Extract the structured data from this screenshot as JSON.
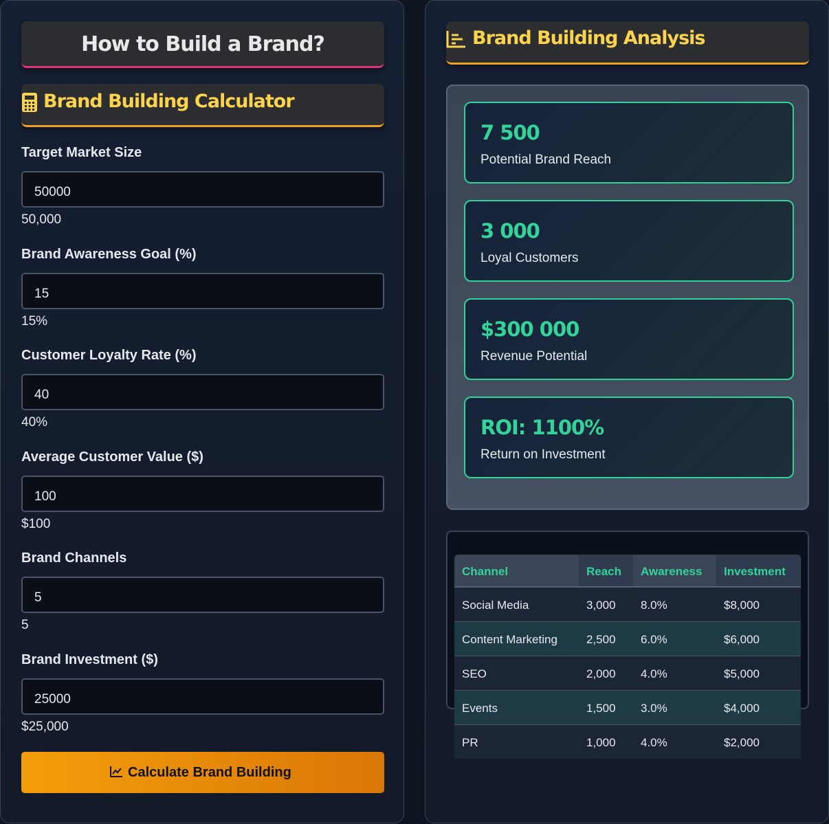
{
  "left": {
    "title": "How to Build a Brand?",
    "section_title": "Brand Building Calculator",
    "fields": [
      {
        "label": "Target Market Size",
        "input": "50000",
        "display": "50,000"
      },
      {
        "label": "Brand Awareness Goal (%)",
        "input": "15",
        "display": "15%"
      },
      {
        "label": "Customer Loyalty Rate (%)",
        "input": "40",
        "display": "40%"
      },
      {
        "label": "Average Customer Value ($)",
        "input": "100",
        "display": "$100"
      },
      {
        "label": "Brand Channels",
        "input": "5",
        "display": "5"
      },
      {
        "label": "Brand Investment ($)",
        "input": "25000",
        "display": "$25,000"
      }
    ],
    "button": "Calculate Brand Building"
  },
  "right": {
    "title": "Brand Building Analysis",
    "metrics": [
      {
        "value": "7 500",
        "label": "Potential Brand Reach"
      },
      {
        "value": "3 000",
        "label": "Loyal Customers"
      },
      {
        "value": "$300 000",
        "label": "Revenue Potential"
      },
      {
        "value": "ROI: 1100%",
        "label": "Return on Investment"
      }
    ],
    "table": {
      "headers": [
        "Channel",
        "Reach",
        "Awareness",
        "Investment"
      ],
      "rows": [
        [
          "Social Media",
          "3,000",
          "8.0%",
          "$8,000"
        ],
        [
          "Content Marketing",
          "2,500",
          "6.0%",
          "$6,000"
        ],
        [
          "SEO",
          "2,000",
          "4.0%",
          "$5,000"
        ],
        [
          "Events",
          "1,500",
          "3.0%",
          "$4,000"
        ],
        [
          "PR",
          "1,000",
          "4.0%",
          "$2,000"
        ]
      ]
    }
  }
}
